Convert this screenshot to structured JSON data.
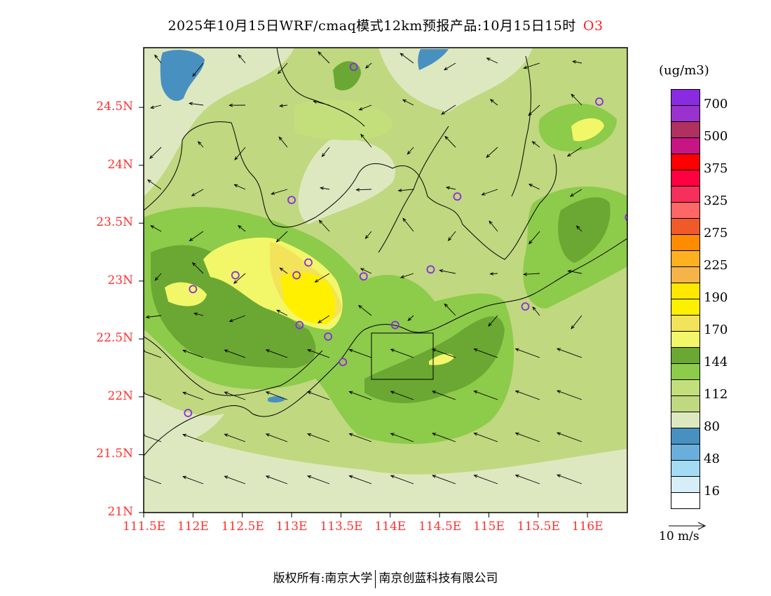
{
  "title": {
    "text": "2025年10月15日WRF/cmaq模式12km预报产品:10月15日15时",
    "species": "O3"
  },
  "axes": {
    "lat_labels": [
      "24.5N",
      "24N",
      "23.5N",
      "23N",
      "22.5N",
      "22N",
      "21.5N",
      "21N"
    ],
    "lat_values": [
      24.5,
      24,
      23.5,
      23,
      22.5,
      22,
      21.5,
      21
    ],
    "lon_labels": [
      "111.5E",
      "112E",
      "112.5E",
      "113E",
      "113.5E",
      "114E",
      "114.5E",
      "115E",
      "115.5E",
      "116E"
    ],
    "lon_values": [
      111.5,
      112,
      112.5,
      113,
      113.5,
      114,
      114.5,
      115,
      115.5,
      116
    ]
  },
  "colorbar": {
    "unit": "(ug/m3)",
    "colors": [
      "#8a2be2",
      "#9a32cd",
      "#b03060",
      "#c71585",
      "#ff0000",
      "#ff0040",
      "#f5305a",
      "#ff6666",
      "#f05a28",
      "#ff8c00",
      "#ffb020",
      "#f5b44a",
      "#ffe800",
      "#fff000",
      "#f2e35a",
      "#f2f76a",
      "#6aa833",
      "#8dcb4a",
      "#c2df7c",
      "#c0d880",
      "#dee8c0",
      "#4890c0",
      "#6aaedc",
      "#a4dbf4",
      "#d6eef8",
      "#ffffff"
    ],
    "labels": [
      "700",
      "500",
      "375",
      "325",
      "275",
      "225",
      "190",
      "170",
      "144",
      "112",
      "80",
      "48",
      "16"
    ]
  },
  "wind_legend": "10 m/s",
  "stations": [
    [
      113.63,
      24.85
    ],
    [
      116.12,
      24.55
    ],
    [
      113.0,
      23.7
    ],
    [
      114.68,
      23.73
    ],
    [
      116.42,
      23.55
    ],
    [
      112.43,
      23.05
    ],
    [
      113.05,
      23.05
    ],
    [
      113.17,
      23.16
    ],
    [
      113.73,
      23.04
    ],
    [
      114.41,
      23.1
    ],
    [
      112.0,
      22.93
    ],
    [
      113.08,
      22.62
    ],
    [
      113.37,
      22.52
    ],
    [
      114.05,
      22.62
    ],
    [
      115.37,
      22.78
    ],
    [
      113.52,
      22.3
    ],
    [
      111.95,
      21.86
    ]
  ],
  "footer": {
    "left": "版权所有:南京大学",
    "right": "南京创蓝科技有限公司"
  }
}
